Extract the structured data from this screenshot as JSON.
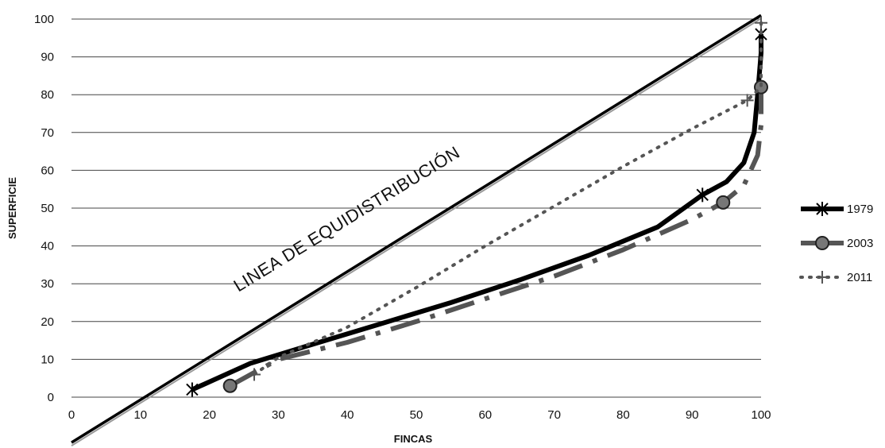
{
  "chart_data": {
    "type": "line",
    "xlabel": "FINCAS",
    "ylabel": "SUPERFICIE",
    "xlim": [
      0,
      100
    ],
    "ylim": [
      0,
      100
    ],
    "xticks": [
      0,
      10,
      20,
      30,
      40,
      50,
      60,
      70,
      80,
      90,
      100
    ],
    "yticks": [
      0,
      10,
      20,
      30,
      40,
      50,
      60,
      70,
      80,
      90,
      100
    ],
    "grid": "horizontal",
    "legend_position": "right",
    "annotation": "LINEA DE EQUIDISTRIBUCIÓN",
    "equidistribution_line": {
      "x": [
        0,
        100
      ],
      "y": [
        -12,
        101
      ]
    },
    "series": [
      {
        "name": "1979",
        "style": "solid-thick",
        "color": "#000000",
        "marker": "star",
        "x": [
          17.5,
          26,
          35,
          45,
          55,
          65,
          75,
          85,
          91.5,
          95,
          97.5,
          99,
          99.5,
          100,
          100
        ],
        "y": [
          2,
          9,
          14,
          19.5,
          25,
          31,
          37.5,
          45,
          53.5,
          57,
          62,
          70,
          80,
          91,
          96
        ],
        "markers_x": [
          17.5,
          91.5,
          100
        ],
        "markers_y": [
          2,
          53.5,
          96
        ]
      },
      {
        "name": "2003",
        "style": "dashed-thick",
        "color": "#555555",
        "marker": "circle",
        "x": [
          23,
          26,
          30,
          40,
          50,
          60,
          70,
          80,
          90,
          94.5,
          97.5,
          99.5,
          100,
          100
        ],
        "y": [
          3,
          6,
          10,
          14.5,
          20,
          26,
          32,
          39,
          47,
          51.5,
          56,
          64,
          72,
          82
        ],
        "markers_x": [
          23,
          94.5,
          100
        ],
        "markers_y": [
          3,
          51.5,
          82
        ]
      },
      {
        "name": "2011",
        "style": "dotted",
        "color": "#555555",
        "marker": "cross",
        "x": [
          26.5,
          30,
          40,
          50,
          60,
          70,
          80,
          90,
          98,
          100,
          100
        ],
        "y": [
          6,
          10.5,
          18.5,
          29,
          40,
          50.5,
          61,
          71,
          78.5,
          82,
          99
        ],
        "markers_x": [
          26.5,
          98,
          100
        ],
        "markers_y": [
          6,
          78.5,
          99
        ]
      }
    ]
  }
}
